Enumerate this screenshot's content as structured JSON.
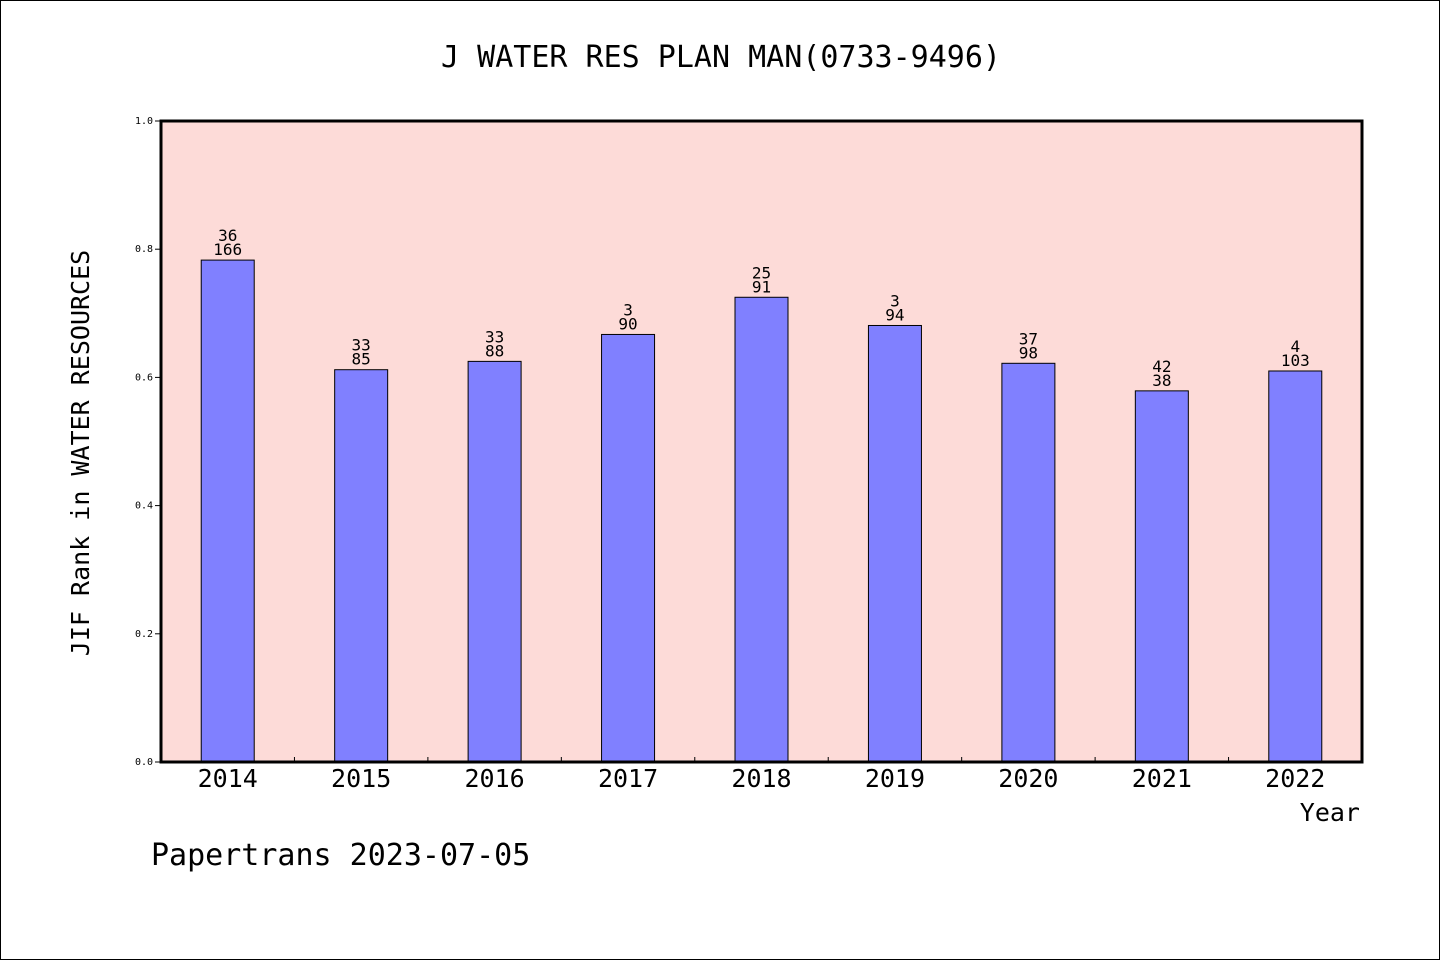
{
  "chart_data": {
    "type": "bar",
    "title": "J WATER RES PLAN MAN(0733-9496)",
    "ylabel": "JIF Rank in WATER RESOURCES",
    "xlabel": "Year",
    "footer": "Papertrans 2023-07-05",
    "categories": [
      "2014",
      "2015",
      "2016",
      "2017",
      "2018",
      "2019",
      "2020",
      "2021",
      "2022"
    ],
    "values": [
      0.783,
      0.612,
      0.625,
      0.667,
      0.725,
      0.681,
      0.622,
      0.579,
      0.61
    ],
    "label_top": [
      "36",
      "33",
      "33",
      "3",
      "25",
      "3",
      "37",
      "42",
      "4"
    ],
    "label_bottom": [
      "166",
      "85",
      "88",
      "90",
      "91",
      "94",
      "98",
      "38",
      "103"
    ],
    "ylim": [
      0,
      1.0
    ],
    "yticks": [
      "0.0",
      "0.2",
      "0.4",
      "0.6",
      "0.8",
      "1.0"
    ],
    "ytick_values": [
      0,
      0.2,
      0.4,
      0.6,
      0.8,
      1.0
    ],
    "grid": false,
    "colors": {
      "plot_background": "#fddbd8",
      "bar_fill": "#8080ff",
      "bar_stroke": "#000000",
      "axis": "#000000"
    }
  }
}
